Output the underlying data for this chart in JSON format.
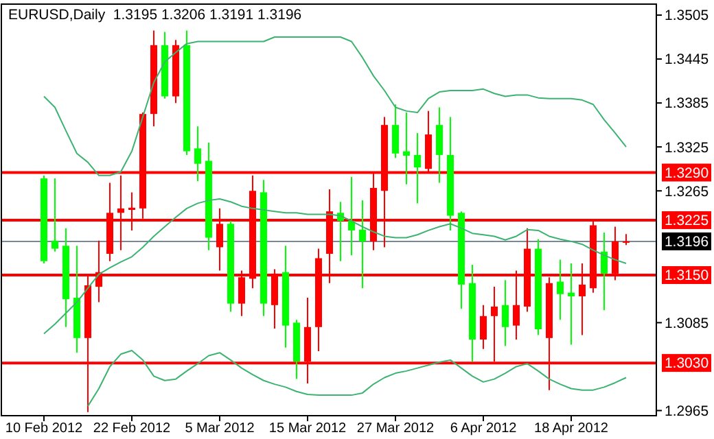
{
  "chart_data": {
    "type": "candlestick",
    "title": "EURUSD,Daily  1.3195 1.3206 1.3191 1.3196",
    "categories": [
      "10 Feb 2012",
      null,
      null,
      null,
      null,
      null,
      null,
      null,
      "22 Feb 2012",
      null,
      null,
      null,
      null,
      null,
      null,
      null,
      "5 Mar 2012",
      null,
      null,
      null,
      null,
      null,
      null,
      null,
      "15 Mar 2012",
      null,
      null,
      null,
      null,
      null,
      null,
      null,
      "27 Mar 2012",
      null,
      null,
      null,
      null,
      null,
      null,
      null,
      "6 Apr 2012",
      null,
      null,
      null,
      null,
      null,
      null,
      null,
      "18 Apr 2012",
      null,
      null,
      null,
      null,
      null
    ],
    "ohlc": [
      [
        1.3282,
        1.3286,
        1.3166,
        1.3169
      ],
      [
        1.3197,
        1.3282,
        1.3182,
        1.3186
      ],
      [
        1.319,
        1.3214,
        1.3079,
        1.3117
      ],
      [
        1.3119,
        1.319,
        1.3044,
        1.3064
      ],
      [
        1.3064,
        1.3152,
        1.2963,
        1.3136
      ],
      [
        1.3134,
        1.3197,
        1.3113,
        1.3154
      ],
      [
        1.3179,
        1.3276,
        1.3169,
        1.3235
      ],
      [
        1.3235,
        1.3286,
        1.3184,
        1.3241
      ],
      [
        1.3239,
        1.3263,
        1.3211,
        1.3242
      ],
      [
        1.3241,
        1.3372,
        1.3227,
        1.337
      ],
      [
        1.337,
        1.3484,
        1.3353,
        1.3464
      ],
      [
        1.3464,
        1.3482,
        1.3391,
        1.3394
      ],
      [
        1.3394,
        1.3471,
        1.3385,
        1.3464
      ],
      [
        1.3464,
        1.3484,
        1.3314,
        1.3319
      ],
      [
        1.3323,
        1.3353,
        1.3278,
        1.3302
      ],
      [
        1.3306,
        1.3331,
        1.3184,
        1.3201
      ],
      [
        1.3188,
        1.3241,
        1.3156,
        1.322
      ],
      [
        1.322,
        1.3224,
        1.31,
        1.3111
      ],
      [
        1.3111,
        1.3156,
        1.3094,
        1.3147
      ],
      [
        1.3145,
        1.3286,
        1.3132,
        1.3265
      ],
      [
        1.3263,
        1.328,
        1.3094,
        1.3111
      ],
      [
        1.3109,
        1.3158,
        1.3077,
        1.3152
      ],
      [
        1.3154,
        1.319,
        1.3051,
        1.3081
      ],
      [
        1.3085,
        1.3089,
        1.3008,
        1.3032
      ],
      [
        1.3032,
        1.3119,
        1.3002,
        1.3079
      ],
      [
        1.3079,
        1.3186,
        1.3046,
        1.3173
      ],
      [
        1.3179,
        1.3267,
        1.3139,
        1.3237
      ],
      [
        1.3235,
        1.325,
        1.3169,
        1.3224
      ],
      [
        1.3224,
        1.3284,
        1.3177,
        1.3211
      ],
      [
        1.3212,
        1.3252,
        1.3132,
        1.3196
      ],
      [
        1.3196,
        1.3289,
        1.3184,
        1.3269
      ],
      [
        1.3265,
        1.3366,
        1.3188,
        1.3355
      ],
      [
        1.3355,
        1.3383,
        1.331,
        1.3316
      ],
      [
        1.3319,
        1.3372,
        1.3274,
        1.3313
      ],
      [
        1.3314,
        1.3344,
        1.3248,
        1.3297
      ],
      [
        1.3295,
        1.3374,
        1.3289,
        1.3342
      ],
      [
        1.3355,
        1.3379,
        1.3276,
        1.3314
      ],
      [
        1.3314,
        1.3366,
        1.3211,
        1.3231
      ],
      [
        1.3235,
        1.3237,
        1.3104,
        1.3137
      ],
      [
        1.3139,
        1.3164,
        1.3032,
        1.3062
      ],
      [
        1.3062,
        1.3109,
        1.3049,
        1.3094
      ],
      [
        1.3094,
        1.3134,
        1.3032,
        1.3107
      ],
      [
        1.3109,
        1.3143,
        1.3053,
        1.3079
      ],
      [
        1.3081,
        1.3156,
        1.3062,
        1.3109
      ],
      [
        1.3107,
        1.3214,
        1.31,
        1.3186
      ],
      [
        1.3186,
        1.3199,
        1.3068,
        1.3076
      ],
      [
        1.3064,
        1.3147,
        1.2993,
        1.3139
      ],
      [
        1.3141,
        1.3171,
        1.3089,
        1.3124
      ],
      [
        1.3126,
        1.3166,
        1.3055,
        1.3121
      ],
      [
        1.3121,
        1.3166,
        1.3068,
        1.3137
      ],
      [
        1.3132,
        1.3224,
        1.3126,
        1.3218
      ],
      [
        1.3182,
        1.3208,
        1.3102,
        1.3152
      ],
      [
        1.3152,
        1.3216,
        1.3143,
        1.3196
      ],
      [
        1.3195,
        1.3206,
        1.3191,
        1.3196
      ]
    ],
    "colors": [
      "#00ff00",
      "#00ff00",
      "#00ff00",
      "#00ff00",
      "#ff0000",
      "#ff0000",
      "#ff0000",
      "#ff0000",
      "#ff0000",
      "#ff0000",
      "#ff0000",
      "#00ff00",
      "#ff0000",
      "#00ff00",
      "#00ff00",
      "#00ff00",
      "#ff0000",
      "#00ff00",
      "#ff0000",
      "#ff0000",
      "#00ff00",
      "#ff0000",
      "#00ff00",
      "#00ff00",
      "#ff0000",
      "#ff0000",
      "#ff0000",
      "#00ff00",
      "#00ff00",
      "#00ff00",
      "#ff0000",
      "#ff0000",
      "#00ff00",
      "#00ff00",
      "#00ff00",
      "#ff0000",
      "#00ff00",
      "#00ff00",
      "#00ff00",
      "#00ff00",
      "#ff0000",
      "#ff0000",
      "#00ff00",
      "#ff0000",
      "#ff0000",
      "#00ff00",
      "#ff0000",
      "#00ff00",
      "#00ff00",
      "#ff0000",
      "#ff0000",
      "#00ff00",
      "#ff0000",
      "#ff0000"
    ],
    "series": [
      {
        "type": "line",
        "color": "#3cb371",
        "values": [
          1.3394,
          1.3379,
          1.3347,
          1.3316,
          1.3304,
          1.3286,
          1.3286,
          1.3291,
          1.3319,
          1.3366,
          1.3413,
          1.3441,
          1.3454,
          1.3466,
          1.3469,
          1.3469,
          1.3469,
          1.3469,
          1.3469,
          1.3469,
          1.3469,
          1.3475,
          1.3475,
          1.3475,
          1.3475,
          1.3475,
          1.3475,
          1.3475,
          1.3469,
          1.3447,
          1.3422,
          1.3402,
          1.3379,
          1.3374,
          1.3372,
          1.3391,
          1.34,
          1.3402,
          1.3402,
          1.3402,
          1.3404,
          1.3398,
          1.3394,
          1.3396,
          1.3396,
          1.3392,
          1.3391,
          1.3391,
          1.3391,
          1.3389,
          1.3383,
          1.3362,
          1.3344,
          1.3325
        ]
      },
      {
        "type": "line",
        "color": "#3cb371",
        "values": [
          1.307,
          1.3083,
          1.3098,
          1.3113,
          1.3132,
          1.3151,
          1.316,
          1.3168,
          1.3175,
          1.3188,
          1.3203,
          1.3216,
          1.3229,
          1.3241,
          1.3248,
          1.3252,
          1.3254,
          1.325,
          1.3244,
          1.3241,
          1.3239,
          1.3237,
          1.3235,
          1.3235,
          1.3233,
          1.3233,
          1.3233,
          1.3231,
          1.3224,
          1.3216,
          1.3209,
          1.3203,
          1.3201,
          1.3201,
          1.3205,
          1.3211,
          1.3216,
          1.322,
          1.3214,
          1.3207,
          1.3205,
          1.3203,
          1.3198,
          1.3203,
          1.3212,
          1.3211,
          1.3203,
          1.3199,
          1.3196,
          1.3192,
          1.3184,
          1.3177,
          1.3171,
          1.3166
        ]
      },
      {
        "type": "line",
        "color": "#3cb371",
        "values": [
          null,
          null,
          null,
          null,
          1.2971,
          1.2995,
          1.3025,
          1.3042,
          1.3047,
          1.3034,
          1.3012,
          1.3006,
          1.3008,
          1.3019,
          1.3029,
          1.304,
          1.3044,
          1.3034,
          1.3023,
          1.3014,
          1.3006,
          1.3001,
          1.2997,
          1.2991,
          1.2987,
          1.2986,
          1.2986,
          1.2986,
          1.2986,
          1.2989,
          1.3001,
          1.301,
          1.3016,
          1.3019,
          1.3023,
          1.3027,
          1.3031,
          1.3034,
          1.3023,
          1.3012,
          1.3004,
          1.3008,
          1.3016,
          1.3025,
          1.3029,
          1.3019,
          1.3008,
          1.3001,
          1.2995,
          1.2993,
          1.2993,
          1.2997,
          1.3003,
          1.301
        ]
      }
    ],
    "ylim": [
      1.2958,
      1.352
    ],
    "yticks": [
      1.2965,
      1.3085,
      1.3265,
      1.3325,
      1.3385,
      1.3445,
      1.3505
    ],
    "ref_lines": [
      {
        "axis": "y",
        "value": 1.329,
        "label": "1.3290",
        "color": "#ff0000"
      },
      {
        "axis": "y",
        "value": 1.3225,
        "label": "1.3225",
        "color": "#ff0000"
      },
      {
        "axis": "y",
        "value": 1.315,
        "label": "1.3150",
        "color": "#ff0000"
      },
      {
        "axis": "y",
        "value": 1.303,
        "label": "1.3030",
        "color": "#ff0000"
      },
      {
        "axis": "y",
        "value": 1.3196,
        "label": "1.3196",
        "color": "#778899"
      }
    ]
  }
}
